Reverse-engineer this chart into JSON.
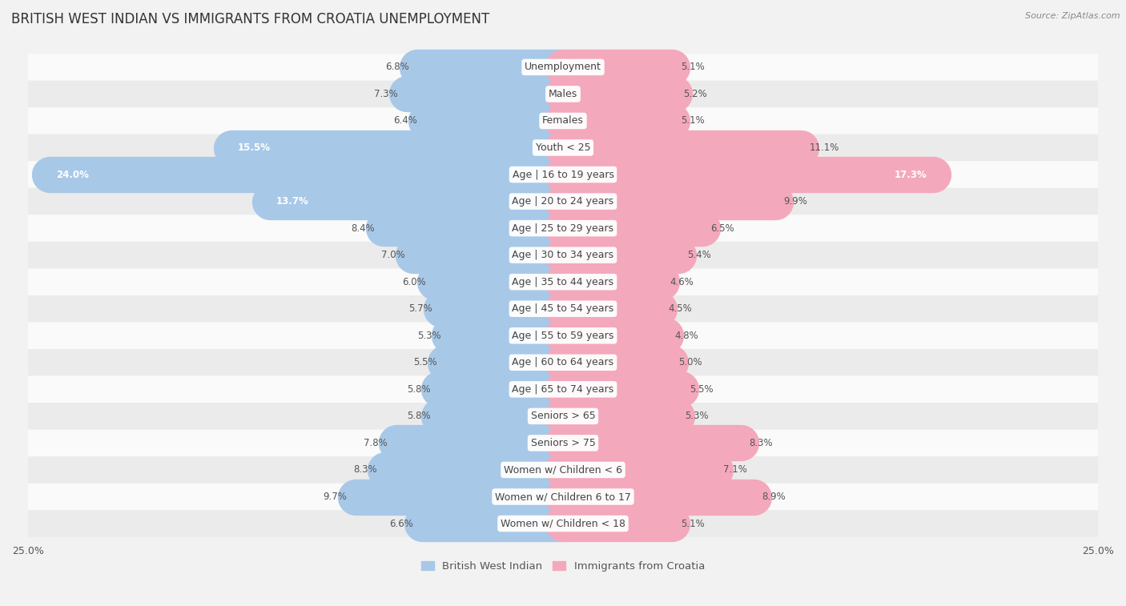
{
  "title": "BRITISH WEST INDIAN VS IMMIGRANTS FROM CROATIA UNEMPLOYMENT",
  "source": "Source: ZipAtlas.com",
  "categories": [
    "Unemployment",
    "Males",
    "Females",
    "Youth < 25",
    "Age | 16 to 19 years",
    "Age | 20 to 24 years",
    "Age | 25 to 29 years",
    "Age | 30 to 34 years",
    "Age | 35 to 44 years",
    "Age | 45 to 54 years",
    "Age | 55 to 59 years",
    "Age | 60 to 64 years",
    "Age | 65 to 74 years",
    "Seniors > 65",
    "Seniors > 75",
    "Women w/ Children < 6",
    "Women w/ Children 6 to 17",
    "Women w/ Children < 18"
  ],
  "left_values": [
    6.8,
    7.3,
    6.4,
    15.5,
    24.0,
    13.7,
    8.4,
    7.0,
    6.0,
    5.7,
    5.3,
    5.5,
    5.8,
    5.8,
    7.8,
    8.3,
    9.7,
    6.6
  ],
  "right_values": [
    5.1,
    5.2,
    5.1,
    11.1,
    17.3,
    9.9,
    6.5,
    5.4,
    4.6,
    4.5,
    4.8,
    5.0,
    5.5,
    5.3,
    8.3,
    7.1,
    8.9,
    5.1
  ],
  "left_color": "#A8C8E8",
  "right_color": "#F4A8BC",
  "left_label": "British West Indian",
  "right_label": "Immigrants from Croatia",
  "xlim": 25.0,
  "bg_color": "#f2f2f2",
  "row_colors": [
    "#fafafa",
    "#ebebeb"
  ],
  "title_fontsize": 12,
  "label_fontsize": 9,
  "value_fontsize": 8.5,
  "axis_fontsize": 9
}
